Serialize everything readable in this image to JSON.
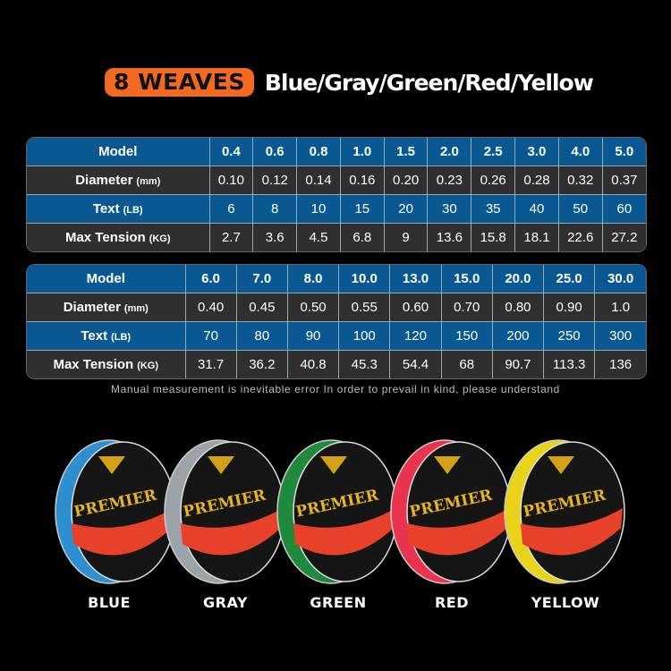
{
  "header": {
    "badge": "8 WEAVES",
    "title": "Blue/Gray/Green/Red/Yellow"
  },
  "colors": {
    "accent": "#f26a21",
    "table_blue": "#0a5892",
    "table_dark": "#2f2f2f"
  },
  "table1": {
    "rows": [
      {
        "label": "Model",
        "unit": "",
        "values": [
          "0.4",
          "0.6",
          "0.8",
          "1.0",
          "1.5",
          "2.0",
          "2.5",
          "3.0",
          "4.0",
          "5.0"
        ]
      },
      {
        "label": "Diameter",
        "unit": "(mm)",
        "values": [
          "0.10",
          "0.12",
          "0.14",
          "0.16",
          "0.20",
          "0.23",
          "0.26",
          "0.28",
          "0.32",
          "0.37"
        ]
      },
      {
        "label": "Text",
        "unit": "(LB)",
        "values": [
          "6",
          "8",
          "10",
          "15",
          "20",
          "30",
          "35",
          "40",
          "50",
          "60"
        ]
      },
      {
        "label": "Max Tension",
        "unit": "(KG)",
        "values": [
          "2.7",
          "3.6",
          "4.5",
          "6.8",
          "9",
          "13.6",
          "15.8",
          "18.1",
          "22.6",
          "27.2"
        ]
      }
    ]
  },
  "table2": {
    "rows": [
      {
        "label": "Model",
        "unit": "",
        "values": [
          "6.0",
          "7.0",
          "8.0",
          "10.0",
          "13.0",
          "15.0",
          "20.0",
          "25.0",
          "30.0"
        ]
      },
      {
        "label": "Diameter",
        "unit": "(mm)",
        "values": [
          "0.40",
          "0.45",
          "0.50",
          "0.55",
          "0.60",
          "0.70",
          "0.80",
          "0.90",
          "1.0"
        ]
      },
      {
        "label": "Text",
        "unit": "(LB)",
        "values": [
          "70",
          "80",
          "90",
          "100",
          "120",
          "150",
          "200",
          "250",
          "300"
        ]
      },
      {
        "label": "Max Tension",
        "unit": "(KG)",
        "values": [
          "31.7",
          "36.2",
          "40.8",
          "45.3",
          "54.4",
          "68",
          "90.7",
          "113.3",
          "136"
        ]
      }
    ]
  },
  "note": "Manual measurement is inevitable error In order to prevail in kind, please understand",
  "spools": {
    "brand": "PREMIER",
    "items": [
      {
        "label": "BLUE",
        "color": "#2e8fd0"
      },
      {
        "label": "GRAY",
        "color": "#9aa3a8"
      },
      {
        "label": "GREEN",
        "color": "#1f8a3e"
      },
      {
        "label": "RED",
        "color": "#e8344f"
      },
      {
        "label": "YELLOW",
        "color": "#e8d21a"
      }
    ]
  }
}
